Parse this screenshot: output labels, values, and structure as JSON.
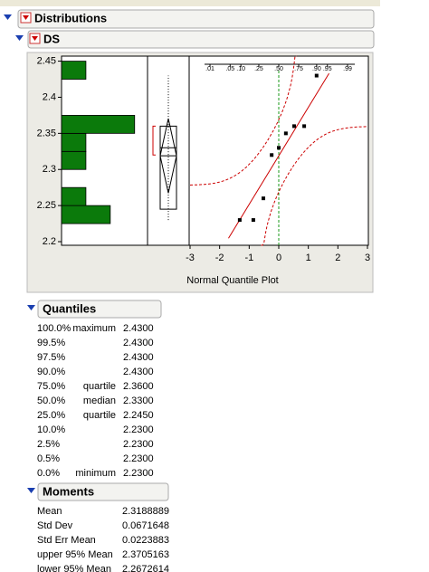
{
  "header": {
    "title": "Distributions"
  },
  "variable": {
    "title": "DS"
  },
  "chart_data": {
    "type": "distribution",
    "ylim": [
      2.195,
      2.457
    ],
    "yticks": [
      2.2,
      2.25,
      2.3,
      2.35,
      2.4,
      2.45
    ],
    "histogram": {
      "bins": [
        2.225,
        2.25,
        2.275,
        2.3,
        2.325,
        2.35,
        2.375,
        2.4,
        2.425,
        2.45
      ],
      "counts": [
        2,
        1,
        0,
        1,
        1,
        3,
        0,
        0,
        1
      ],
      "color": "#0b7a0b"
    },
    "box": {
      "min": 2.23,
      "q1": 2.245,
      "median": 2.33,
      "q3": 2.36,
      "max": 2.43,
      "mean": 2.3188889,
      "mean_ci": [
        2.2672614,
        2.3705163
      ],
      "shortest_half": [
        2.32,
        2.36
      ]
    },
    "quantile_plot": {
      "type": "scatter",
      "title": "Normal Quantile Plot",
      "x": [
        -1.32,
        -0.86,
        -0.52,
        -0.24,
        0,
        0.24,
        0.52,
        0.86,
        1.28
      ],
      "values": [
        2.23,
        2.23,
        2.26,
        2.32,
        2.33,
        2.35,
        2.36,
        2.36,
        2.43
      ],
      "xlim": [
        -3,
        3
      ],
      "xticks": [
        -3,
        -2,
        -1,
        0,
        1,
        2,
        3
      ],
      "prob_ticks": [
        {
          "value": 0.01,
          "label": ".01"
        },
        {
          "value": 0.05,
          "label": ".05"
        },
        {
          "value": 0.1,
          "label": ".10"
        },
        {
          "value": 0.25,
          "label": ".25"
        },
        {
          "value": 0.5,
          "label": ".50"
        },
        {
          "value": 0.75,
          "label": ".75"
        },
        {
          "value": 0.9,
          "label": ".90"
        },
        {
          "value": 0.95,
          "label": ".95"
        },
        {
          "value": 0.99,
          "label": ".99"
        }
      ],
      "fit_color": "#cc0000"
    }
  },
  "quantiles": {
    "title": "Quantiles",
    "rows": [
      {
        "pct": "100.0%",
        "label": "maximum",
        "value": "2.4300"
      },
      {
        "pct": "99.5%",
        "value": "2.4300"
      },
      {
        "pct": "97.5%",
        "value": "2.4300"
      },
      {
        "pct": "90.0%",
        "value": "2.4300"
      },
      {
        "pct": "75.0%",
        "label": "quartile",
        "value": "2.3600"
      },
      {
        "pct": "50.0%",
        "label": "median",
        "value": "2.3300"
      },
      {
        "pct": "25.0%",
        "label": "quartile",
        "value": "2.2450"
      },
      {
        "pct": "10.0%",
        "value": "2.2300"
      },
      {
        "pct": "2.5%",
        "value": "2.2300"
      },
      {
        "pct": "0.5%",
        "value": "2.2300"
      },
      {
        "pct": "0.0%",
        "label": "minimum",
        "value": "2.2300"
      }
    ]
  },
  "moments": {
    "title": "Moments",
    "rows": [
      {
        "label": "Mean",
        "value": 2.3188889
      },
      {
        "label": "Std Dev",
        "value": 0.0671648
      },
      {
        "label": "Std Err Mean",
        "value": 0.0223883
      },
      {
        "label": "upper 95% Mean",
        "value": 2.3705163
      },
      {
        "label": "lower 95% Mean",
        "value": 2.2672614
      }
    ]
  }
}
